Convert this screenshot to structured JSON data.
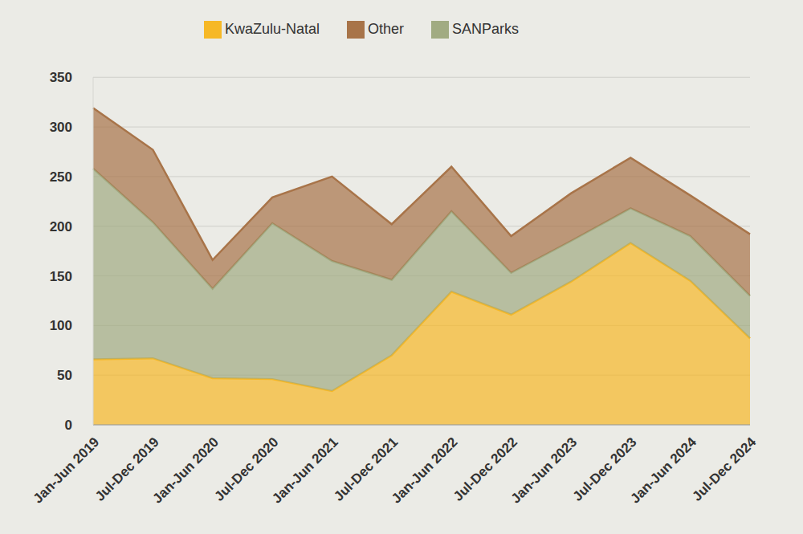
{
  "chart_data": {
    "type": "area",
    "stacked": true,
    "grid": true,
    "legend": "top",
    "categories": [
      "Jan-Jun 2019",
      "Jul-Dec 2019",
      "Jan-Jun 2020",
      "Jul-Dec 2020",
      "Jan-Jun 2021",
      "Jul-Dec 2021",
      "Jan-Jun 2022",
      "Jul-Dec 2022",
      "Jan-Jun 2023",
      "Jul-Dec 2023",
      "Jan-Jun 2024",
      "Jul-Dec 2024"
    ],
    "series": [
      {
        "name": "KwaZulu-Natal",
        "color": "#f6b826",
        "values": [
          66,
          67,
          47,
          46,
          34,
          70,
          134,
          111,
          144,
          183,
          145,
          87
        ]
      },
      {
        "name": "SANParks",
        "color": "#a1ab82",
        "values": [
          192,
          137,
          90,
          157,
          131,
          76,
          81,
          42,
          41,
          35,
          45,
          43
        ]
      },
      {
        "name": "Other",
        "color": "#a87449",
        "values": [
          61,
          73,
          29,
          26,
          85,
          56,
          45,
          37,
          48,
          51,
          41,
          62
        ]
      }
    ],
    "ylim": [
      0,
      350
    ],
    "yticks": [
      0,
      50,
      100,
      150,
      200,
      250,
      300,
      350
    ]
  }
}
